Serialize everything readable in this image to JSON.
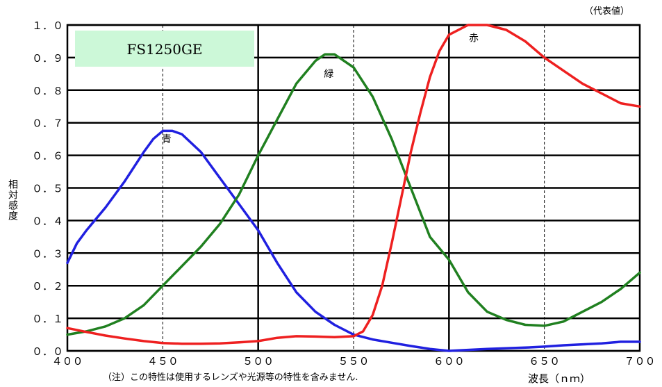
{
  "chart_data": {
    "type": "line",
    "title": "FS1250GE",
    "corner_note": "（代表値）",
    "ylabel": "相対感度",
    "xlabel": "波長（ｎｍ）",
    "footnote": "（注）この特性は使用するレンズや光源等の特性を含みません.",
    "xlim": [
      400,
      700
    ],
    "ylim": [
      0,
      1.0
    ],
    "x_ticks": [
      400,
      450,
      500,
      550,
      600,
      650,
      700
    ],
    "x_tick_labels": [
      "４００",
      "４５０",
      "５００",
      "５５０",
      "６００",
      "６５０",
      "７００"
    ],
    "y_ticks": [
      0,
      0.1,
      0.2,
      0.3,
      0.4,
      0.5,
      0.6,
      0.7,
      0.8,
      0.9,
      1.0
    ],
    "y_tick_labels": [
      "０．０",
      "０．１",
      "０．２",
      "０．３",
      "０．４",
      "０．５",
      "０．６",
      "０．７",
      "０．８",
      "０．９",
      "１．０"
    ],
    "grid": true,
    "series": [
      {
        "name": "青",
        "color": "#2020e0",
        "label_at": [
          452,
          0.64
        ],
        "points": [
          [
            400,
            0.27
          ],
          [
            405,
            0.33
          ],
          [
            410,
            0.37
          ],
          [
            420,
            0.44
          ],
          [
            430,
            0.52
          ],
          [
            440,
            0.61
          ],
          [
            445,
            0.65
          ],
          [
            450,
            0.675
          ],
          [
            455,
            0.675
          ],
          [
            460,
            0.665
          ],
          [
            470,
            0.61
          ],
          [
            480,
            0.53
          ],
          [
            490,
            0.45
          ],
          [
            500,
            0.37
          ],
          [
            510,
            0.27
          ],
          [
            520,
            0.18
          ],
          [
            530,
            0.12
          ],
          [
            540,
            0.08
          ],
          [
            550,
            0.05
          ],
          [
            560,
            0.035
          ],
          [
            570,
            0.025
          ],
          [
            580,
            0.015
          ],
          [
            590,
            0.006
          ],
          [
            600,
            0.0
          ],
          [
            610,
            0.003
          ],
          [
            620,
            0.006
          ],
          [
            630,
            0.008
          ],
          [
            640,
            0.01
          ],
          [
            650,
            0.013
          ],
          [
            660,
            0.017
          ],
          [
            670,
            0.02
          ],
          [
            680,
            0.023
          ],
          [
            690,
            0.028
          ],
          [
            700,
            0.028
          ]
        ]
      },
      {
        "name": "緑",
        "color": "#208020",
        "label_at": [
          537,
          0.84
        ],
        "points": [
          [
            400,
            0.05
          ],
          [
            410,
            0.06
          ],
          [
            420,
            0.075
          ],
          [
            430,
            0.1
          ],
          [
            440,
            0.14
          ],
          [
            450,
            0.2
          ],
          [
            460,
            0.26
          ],
          [
            470,
            0.32
          ],
          [
            480,
            0.39
          ],
          [
            490,
            0.48
          ],
          [
            500,
            0.6
          ],
          [
            510,
            0.71
          ],
          [
            520,
            0.82
          ],
          [
            530,
            0.89
          ],
          [
            535,
            0.91
          ],
          [
            540,
            0.91
          ],
          [
            550,
            0.87
          ],
          [
            560,
            0.78
          ],
          [
            570,
            0.65
          ],
          [
            580,
            0.5
          ],
          [
            590,
            0.35
          ],
          [
            600,
            0.28
          ],
          [
            610,
            0.18
          ],
          [
            620,
            0.12
          ],
          [
            630,
            0.095
          ],
          [
            640,
            0.08
          ],
          [
            650,
            0.077
          ],
          [
            660,
            0.09
          ],
          [
            670,
            0.12
          ],
          [
            680,
            0.15
          ],
          [
            690,
            0.19
          ],
          [
            700,
            0.24
          ]
        ]
      },
      {
        "name": "赤",
        "color": "#ee2020",
        "label_at": [
          613,
          0.95
        ],
        "points": [
          [
            400,
            0.07
          ],
          [
            410,
            0.058
          ],
          [
            420,
            0.047
          ],
          [
            430,
            0.038
          ],
          [
            440,
            0.03
          ],
          [
            450,
            0.024
          ],
          [
            460,
            0.022
          ],
          [
            470,
            0.022
          ],
          [
            480,
            0.023
          ],
          [
            490,
            0.026
          ],
          [
            500,
            0.03
          ],
          [
            510,
            0.04
          ],
          [
            520,
            0.045
          ],
          [
            530,
            0.044
          ],
          [
            540,
            0.042
          ],
          [
            550,
            0.045
          ],
          [
            555,
            0.06
          ],
          [
            560,
            0.11
          ],
          [
            565,
            0.2
          ],
          [
            570,
            0.33
          ],
          [
            575,
            0.47
          ],
          [
            580,
            0.61
          ],
          [
            585,
            0.73
          ],
          [
            590,
            0.84
          ],
          [
            595,
            0.92
          ],
          [
            600,
            0.97
          ],
          [
            610,
            1.0
          ],
          [
            620,
            1.0
          ],
          [
            630,
            0.985
          ],
          [
            640,
            0.95
          ],
          [
            650,
            0.9
          ],
          [
            660,
            0.86
          ],
          [
            670,
            0.82
          ],
          [
            680,
            0.79
          ],
          [
            690,
            0.76
          ],
          [
            700,
            0.75
          ]
        ]
      }
    ]
  }
}
